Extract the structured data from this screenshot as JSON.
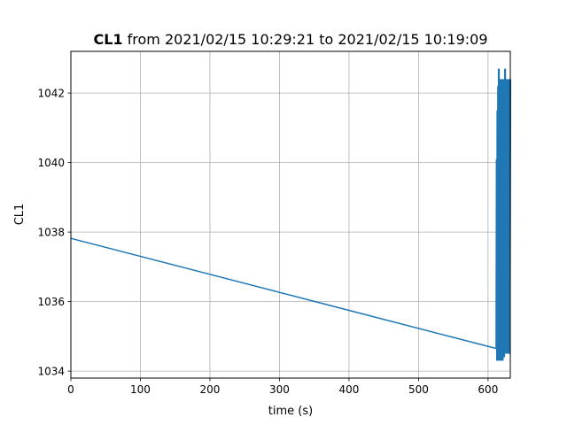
{
  "chart_data": {
    "type": "line",
    "title": {
      "bold": "CL1",
      "rest": " from 2021/02/15 10:29:21 to 2021/02/15 10:19:09"
    },
    "xlabel": "time (s)",
    "ylabel": "CL1",
    "xlim": [
      0,
      632
    ],
    "ylim": [
      1033.8,
      1043.2
    ],
    "xticks": [
      0,
      100,
      200,
      300,
      400,
      500,
      600
    ],
    "yticks": [
      1034,
      1036,
      1038,
      1040,
      1042
    ],
    "grid": true,
    "series": [
      {
        "color": "#1f77b4",
        "x": [
          0,
          612
        ],
        "y": [
          1037.82,
          1034.65
        ]
      }
    ],
    "oscillation": {
      "color": "#1f77b4",
      "x_start": 612,
      "x_end": 632,
      "points": [
        [
          612,
          1034.65
        ],
        [
          612.5,
          1040.1
        ],
        [
          613,
          1034.3
        ],
        [
          613.5,
          1041.5
        ],
        [
          614,
          1034.3
        ],
        [
          614.5,
          1042.2
        ],
        [
          615,
          1034.3
        ],
        [
          615.5,
          1042.7
        ],
        [
          616,
          1034.3
        ],
        [
          616.5,
          1042.4
        ],
        [
          617,
          1034.3
        ],
        [
          617.5,
          1042.4
        ],
        [
          618,
          1034.3
        ],
        [
          618.5,
          1042.4
        ],
        [
          619,
          1034.3
        ],
        [
          619.5,
          1042.4
        ],
        [
          620,
          1034.3
        ],
        [
          620.5,
          1042.4
        ],
        [
          621,
          1034.3
        ],
        [
          621.5,
          1042.4
        ],
        [
          622,
          1034.4
        ],
        [
          622.5,
          1042.4
        ],
        [
          623,
          1034.4
        ],
        [
          623.5,
          1042.4
        ],
        [
          624,
          1034.5
        ],
        [
          624.5,
          1042.7
        ],
        [
          625,
          1034.5
        ],
        [
          625.5,
          1042.4
        ],
        [
          626,
          1034.5
        ],
        [
          626.5,
          1042.4
        ],
        [
          627,
          1034.5
        ],
        [
          627.5,
          1042.4
        ],
        [
          628,
          1034.5
        ],
        [
          628.5,
          1042.4
        ],
        [
          629,
          1034.5
        ],
        [
          629.5,
          1042.4
        ],
        [
          630,
          1034.5
        ],
        [
          630.5,
          1042.4
        ],
        [
          631,
          1034.5
        ],
        [
          632,
          1042.4
        ]
      ]
    }
  }
}
